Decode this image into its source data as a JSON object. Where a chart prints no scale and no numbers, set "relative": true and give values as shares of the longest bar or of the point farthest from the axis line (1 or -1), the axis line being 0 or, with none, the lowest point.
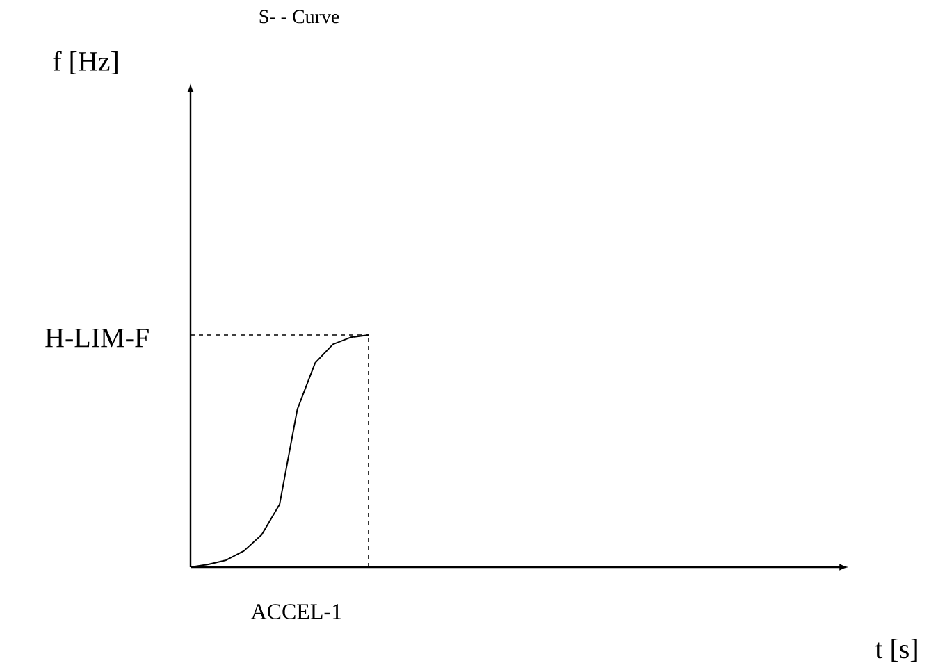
{
  "chart_data": {
    "type": "line",
    "title": "S- - Curve",
    "annotations": [
      "f [Hz]",
      "t [s]"
    ],
    "relative": true,
    "tick_labels": false,
    "marker": "none",
    "line_style": "solid",
    "color": "#000000",
    "categories": [
      null,
      null,
      null,
      null,
      null,
      null,
      null,
      null,
      null,
      null,
      null
    ],
    "values": [
      0,
      0.012,
      0.03,
      0.07,
      0.14,
      0.27,
      0.68,
      0.88,
      0.96,
      0.99,
      1
    ],
    "ref_lines": [
      {
        "axis": "y",
        "value": 1,
        "label": "H-LIM-F",
        "line_style": "dashed"
      },
      {
        "axis": "x",
        "label": "ACCEL-1",
        "line_style": "dashed"
      }
    ]
  }
}
